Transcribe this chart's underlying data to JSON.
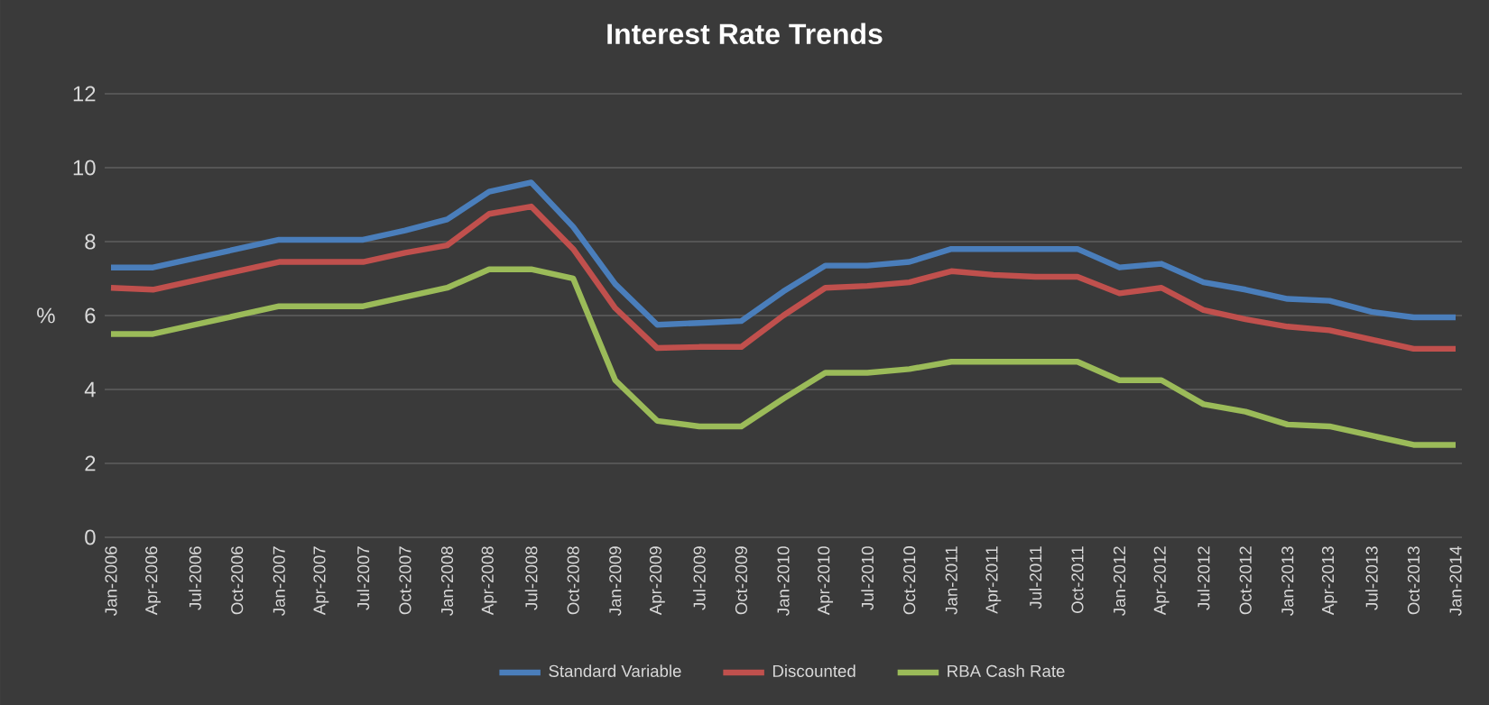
{
  "chart_data": {
    "type": "line",
    "title": "Interest Rate Trends",
    "ylabel": "%",
    "categories": [
      "Jan-2006",
      "Apr-2006",
      "Jul-2006",
      "Oct-2006",
      "Jan-2007",
      "Apr-2007",
      "Jul-2007",
      "Oct-2007",
      "Jan-2008",
      "Apr-2008",
      "Jul-2008",
      "Oct-2008",
      "Jan-2009",
      "Apr-2009",
      "Jul-2009",
      "Oct-2009",
      "Jan-2010",
      "Apr-2010",
      "Jul-2010",
      "Oct-2010",
      "Jan-2011",
      "Apr-2011",
      "Jul-2011",
      "Oct-2011",
      "Jan-2012",
      "Apr-2012",
      "Jul-2012",
      "Oct-2012",
      "Jan-2013",
      "Apr-2013",
      "Jul-2013",
      "Oct-2013",
      "Jan-2014"
    ],
    "series": [
      {
        "name": "Standard Variable",
        "color": "#4a7ebb",
        "values": [
          7.3,
          7.3,
          7.55,
          7.8,
          8.05,
          8.05,
          8.05,
          8.3,
          8.6,
          9.35,
          9.6,
          8.4,
          6.85,
          5.75,
          5.8,
          5.85,
          6.65,
          7.35,
          7.35,
          7.45,
          7.8,
          7.8,
          7.8,
          7.8,
          7.3,
          7.4,
          6.9,
          6.7,
          6.45,
          6.4,
          6.1,
          5.95,
          5.95
        ]
      },
      {
        "name": "Discounted",
        "color": "#c0504d",
        "values": [
          6.75,
          6.7,
          6.95,
          7.2,
          7.45,
          7.45,
          7.45,
          7.7,
          7.9,
          8.75,
          8.95,
          7.8,
          6.2,
          5.12,
          5.15,
          5.15,
          6.0,
          6.75,
          6.8,
          6.9,
          7.2,
          7.1,
          7.05,
          7.05,
          6.6,
          6.75,
          6.15,
          5.9,
          5.7,
          5.6,
          5.35,
          5.1,
          5.1
        ]
      },
      {
        "name": "RBA Cash Rate",
        "color": "#9bbb59",
        "values": [
          5.5,
          5.5,
          5.75,
          6.0,
          6.25,
          6.25,
          6.25,
          6.5,
          6.75,
          7.25,
          7.25,
          7.0,
          4.25,
          3.15,
          3.0,
          3.0,
          3.75,
          4.45,
          4.45,
          4.55,
          4.75,
          4.75,
          4.75,
          4.75,
          4.25,
          4.25,
          3.6,
          3.4,
          3.05,
          3.0,
          2.75,
          2.5,
          2.5
        ]
      }
    ],
    "ylim": [
      0,
      12
    ],
    "yticks": [
      0,
      2,
      4,
      6,
      8,
      10,
      12
    ],
    "grid": "y",
    "legend": "bottom",
    "marker": "none",
    "line_style": "solid"
  }
}
